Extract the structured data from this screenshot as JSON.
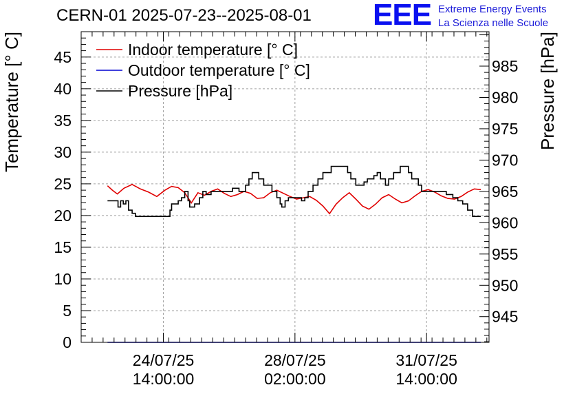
{
  "title": "CERN-01 2025-07-23--2025-08-01",
  "logo": {
    "mark": "EEE",
    "line1": "Extreme Energy Events",
    "line2": "La Scienza nelle Scuole"
  },
  "colors": {
    "indoor": "#e00000",
    "outdoor": "#0000d0",
    "pressure": "#000000",
    "grid": "#a0a0a0",
    "logo": "#0a10f0"
  },
  "chart_data": {
    "type": "line",
    "title": "CERN-01 2025-07-23--2025-08-01",
    "ylabel": "Temperature [° C]",
    "y2label": "Pressure [hPa]",
    "xlabel": "",
    "xlim": [
      0,
      12.4
    ],
    "ylim": [
      0,
      49
    ],
    "y2lim": [
      940.9,
      990.5
    ],
    "grid": true,
    "legend_position": "top-left",
    "x_ticks": [
      {
        "x": 2.5,
        "line1": "24/07/25",
        "line2": "14:00:00"
      },
      {
        "x": 6.5,
        "line1": "28/07/25",
        "line2": "02:00:00"
      },
      {
        "x": 10.5,
        "line1": "31/07/25",
        "line2": "14:00:00"
      }
    ],
    "y_ticks": [
      0,
      5,
      10,
      15,
      20,
      25,
      30,
      35,
      40,
      45
    ],
    "y2_ticks": [
      945,
      950,
      955,
      960,
      965,
      970,
      975,
      980,
      985
    ],
    "series": [
      {
        "name": "Indoor temperature [° C]",
        "axis": "left",
        "color": "#e00000",
        "x": [
          0.8,
          0.95,
          1.1,
          1.3,
          1.55,
          1.8,
          2.05,
          2.3,
          2.55,
          2.75,
          2.95,
          3.15,
          3.35,
          3.55,
          3.75,
          3.95,
          4.15,
          4.35,
          4.55,
          4.75,
          4.95,
          5.15,
          5.35,
          5.55,
          5.75,
          5.95,
          6.15,
          6.35,
          6.55,
          6.75,
          6.95,
          7.15,
          7.35,
          7.55,
          7.75,
          7.95,
          8.15,
          8.35,
          8.55,
          8.75,
          8.95,
          9.15,
          9.35,
          9.55,
          9.75,
          9.95,
          10.15,
          10.35,
          10.55,
          10.75,
          10.95,
          11.15,
          11.35,
          11.55,
          11.75,
          11.95,
          12.15
        ],
        "y": [
          24.7,
          24.0,
          23.4,
          24.3,
          24.9,
          24.2,
          23.7,
          23.0,
          24.0,
          24.6,
          24.4,
          23.6,
          22.0,
          23.6,
          23.2,
          23.8,
          24.2,
          23.5,
          23.0,
          23.3,
          23.8,
          23.5,
          22.7,
          22.8,
          23.6,
          24.0,
          23.5,
          23.0,
          22.6,
          22.8,
          23.0,
          22.4,
          21.5,
          20.3,
          21.8,
          22.8,
          23.6,
          22.6,
          21.5,
          21.0,
          21.8,
          22.8,
          23.3,
          22.6,
          22.0,
          22.3,
          23.1,
          23.8,
          24.1,
          23.7,
          23.1,
          22.7,
          22.6,
          23.0,
          23.7,
          24.2,
          24.1
        ]
      },
      {
        "name": "Outdoor temperature [° C]",
        "axis": "left",
        "color": "#0000d0",
        "x": [
          0.8,
          12.15
        ],
        "y": [
          0,
          0
        ]
      },
      {
        "name": "Pressure [hPa]",
        "axis": "right",
        "color": "#000000",
        "x": [
          0.8,
          1.05,
          1.12,
          1.2,
          1.28,
          1.36,
          1.44,
          1.55,
          1.65,
          1.75,
          2.1,
          2.6,
          2.7,
          2.75,
          2.95,
          3.05,
          3.15,
          3.25,
          3.3,
          3.45,
          3.6,
          3.7,
          3.8,
          3.95,
          4.3,
          4.6,
          4.8,
          5.0,
          5.1,
          5.2,
          5.3,
          5.4,
          5.55,
          5.8,
          5.95,
          6.05,
          6.1,
          6.2,
          6.3,
          6.45,
          6.6,
          6.7,
          6.8,
          6.9,
          7.05,
          7.2,
          7.35,
          7.6,
          7.9,
          8.1,
          8.2,
          8.35,
          8.5,
          8.6,
          8.7,
          8.9,
          9.0,
          9.1,
          9.25,
          9.35,
          9.5,
          9.7,
          9.85,
          9.95,
          10.05,
          10.25,
          10.35,
          10.5,
          10.65,
          10.9,
          11.1,
          11.3,
          11.45,
          11.6,
          11.75,
          11.9,
          12.15
        ],
        "y": [
          963.5,
          963.5,
          962.5,
          963.5,
          963,
          963.5,
          962,
          961.5,
          961,
          961,
          961,
          961,
          962,
          963,
          963.5,
          964,
          965,
          963.5,
          962.5,
          963,
          964,
          965,
          964.5,
          965,
          965,
          965.5,
          965,
          966,
          967,
          968,
          968,
          967,
          966,
          965,
          964,
          963,
          962.5,
          963.5,
          964,
          964,
          964,
          963.5,
          964,
          965,
          966,
          967,
          968,
          969,
          969,
          968,
          967,
          966,
          966,
          966.5,
          967,
          967.5,
          968,
          967,
          966,
          967,
          968,
          969,
          969,
          968,
          967,
          966,
          965,
          965,
          965,
          965,
          964.5,
          964,
          963.5,
          963,
          962,
          961,
          961
        ]
      }
    ]
  }
}
